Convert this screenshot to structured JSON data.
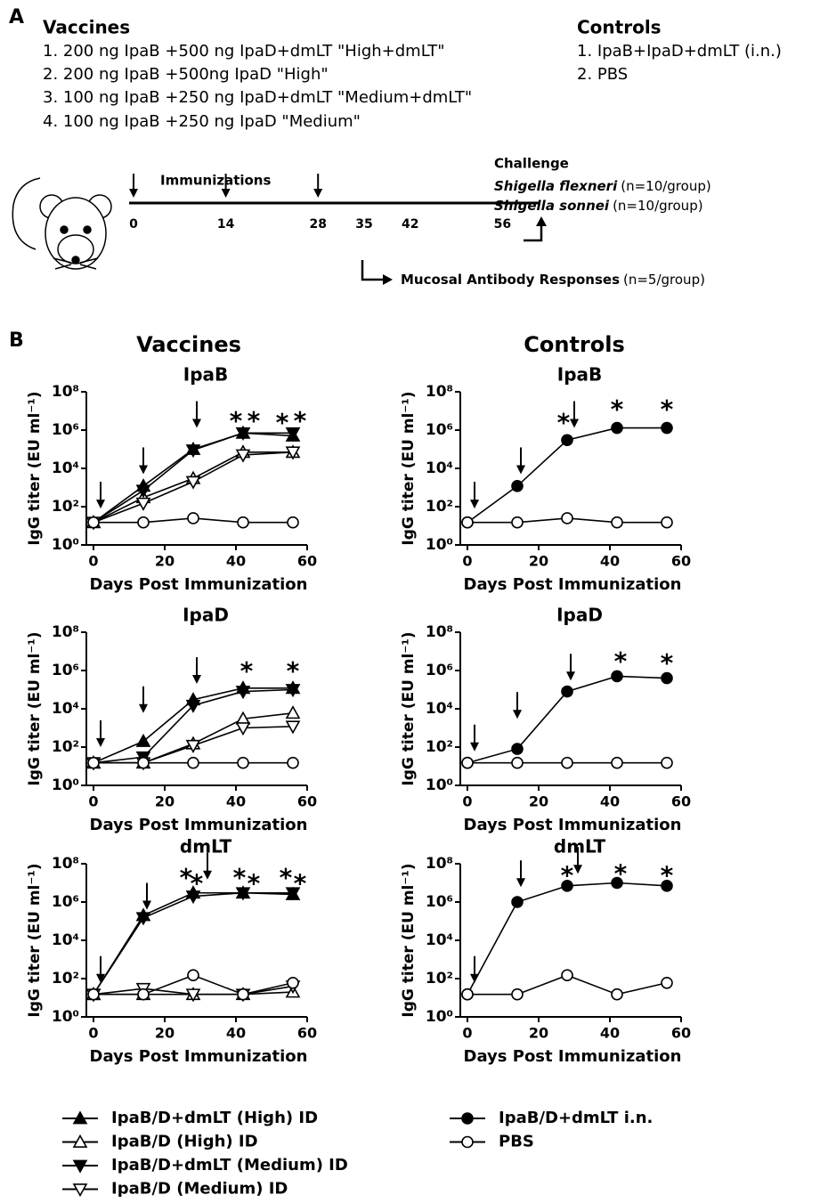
{
  "panel_a": {
    "label": "A",
    "vaccines_title": "Vaccines",
    "vaccines": [
      "1. 200 ng IpaB +500 ng IpaD+dmLT \"High+dmLT\"",
      "2. 200 ng IpaB +500ng IpaD \"High\"",
      "3. 100 ng IpaB +250 ng IpaD+dmLT \"Medium+dmLT\"",
      "4. 100 ng IpaB +250 ng IpaD \"Medium\""
    ],
    "controls_title": "Controls",
    "controls": [
      "1. IpaB+IpaD+dmLT  (i.n.)",
      "2. PBS"
    ],
    "immunizations_label": "Immunizations",
    "timeline_days": [
      0,
      14,
      28,
      35,
      42,
      56
    ],
    "challenge_label": "Challenge",
    "challenge_strains": [
      {
        "name": "Shigella flexneri",
        "n": "(n=10/group)"
      },
      {
        "name": "Shigella sonnei",
        "n": "(n=10/group)"
      }
    ],
    "mucosal_label": "Mucosal Antibody Responses",
    "mucosal_n": "(n=5/group)"
  },
  "panel_b": {
    "label": "B",
    "columns": [
      "Vaccines",
      "Controls"
    ]
  },
  "chart_data": [
    {
      "type": "line",
      "title": "IpaB",
      "y_label": "IgG titer (EU ml⁻¹)",
      "x_label": "Days Post Immunization",
      "log_y": true,
      "xlim": [
        -2,
        60
      ],
      "xticks": [
        0,
        20,
        40,
        60
      ],
      "ylim": [
        1,
        100000000
      ],
      "yticks": [
        {
          "value": 1,
          "label": "10⁰"
        },
        {
          "value": 100,
          "label": "10²"
        },
        {
          "value": 10000,
          "label": "10⁴"
        },
        {
          "value": 1000000,
          "label": "10⁶"
        },
        {
          "value": 100000000,
          "label": "10⁸"
        }
      ],
      "series": [
        {
          "marker": "triangle-up",
          "filled": true,
          "color": "#000000",
          "x": [
            0,
            14,
            28,
            42,
            56
          ],
          "values": [
            15,
            1200,
            100000,
            700000,
            500000
          ]
        },
        {
          "marker": "triangle-up",
          "filled": false,
          "color": "#000000",
          "x": [
            0,
            14,
            28,
            42,
            56
          ],
          "values": [
            15,
            300,
            3000,
            70000,
            70000
          ]
        },
        {
          "marker": "triangle-down",
          "filled": true,
          "color": "#000000",
          "x": [
            0,
            14,
            28,
            42,
            56
          ],
          "values": [
            15,
            700,
            90000,
            700000,
            700000
          ]
        },
        {
          "marker": "triangle-down",
          "filled": false,
          "color": "#000000",
          "x": [
            0,
            14,
            28,
            42,
            56
          ],
          "values": [
            15,
            150,
            2000,
            50000,
            70000
          ]
        },
        {
          "marker": "circle",
          "filled": false,
          "color": "#000000",
          "x": [
            0,
            14,
            28,
            42,
            56
          ],
          "values": [
            15,
            15,
            25,
            15,
            15
          ]
        }
      ],
      "arrows": [
        {
          "x": 2,
          "y": 80
        },
        {
          "x": 14,
          "y": 5000
        },
        {
          "x": 29,
          "y": 1300000
        }
      ],
      "annotations": [
        {
          "text": "*",
          "x": 40,
          "y": 5000000
        },
        {
          "text": "*",
          "x": 45,
          "y": 5000000
        },
        {
          "text": "*",
          "x": 53,
          "y": 4000000
        },
        {
          "text": "*",
          "x": 58,
          "y": 5000000
        }
      ]
    },
    {
      "type": "line",
      "title": "IpaB",
      "y_label": "IgG titer (EU ml⁻¹)",
      "x_label": "Days Post Immunization",
      "log_y": true,
      "xlim": [
        -2,
        60
      ],
      "xticks": [
        0,
        20,
        40,
        60
      ],
      "ylim": [
        1,
        100000000
      ],
      "yticks": [
        {
          "value": 1,
          "label": "10⁰"
        },
        {
          "value": 100,
          "label": "10²"
        },
        {
          "value": 10000,
          "label": "10⁴"
        },
        {
          "value": 1000000,
          "label": "10⁶"
        },
        {
          "value": 100000000,
          "label": "10⁸"
        }
      ],
      "series": [
        {
          "marker": "circle",
          "filled": true,
          "color": "#000000",
          "x": [
            0,
            14,
            28,
            42,
            56
          ],
          "values": [
            15,
            1200,
            300000,
            1300000,
            1300000
          ]
        },
        {
          "marker": "circle",
          "filled": false,
          "color": "#000000",
          "x": [
            0,
            14,
            28,
            42,
            56
          ],
          "values": [
            15,
            15,
            25,
            15,
            15
          ]
        }
      ],
      "arrows": [
        {
          "x": 2,
          "y": 80
        },
        {
          "x": 15,
          "y": 5000
        },
        {
          "x": 30,
          "y": 1300000
        }
      ],
      "annotations": [
        {
          "text": "*",
          "x": 27,
          "y": 4000000
        },
        {
          "text": "*",
          "x": 42,
          "y": 20000000
        },
        {
          "text": "*",
          "x": 56,
          "y": 20000000
        }
      ]
    },
    {
      "type": "line",
      "title": "IpaD",
      "y_label": "IgG titer (EU ml⁻¹)",
      "x_label": "Days Post Immunization",
      "log_y": true,
      "xlim": [
        -2,
        60
      ],
      "xticks": [
        0,
        20,
        40,
        60
      ],
      "ylim": [
        1,
        100000000
      ],
      "yticks": [
        {
          "value": 1,
          "label": "10⁰"
        },
        {
          "value": 100,
          "label": "10²"
        },
        {
          "value": 10000,
          "label": "10⁴"
        },
        {
          "value": 1000000,
          "label": "10⁶"
        },
        {
          "value": 100000000,
          "label": "10⁸"
        }
      ],
      "series": [
        {
          "marker": "triangle-up",
          "filled": true,
          "color": "#000000",
          "x": [
            0,
            14,
            28,
            42,
            56
          ],
          "values": [
            15,
            200,
            30000,
            120000,
            120000
          ]
        },
        {
          "marker": "triangle-up",
          "filled": false,
          "color": "#000000",
          "x": [
            0,
            14,
            28,
            42,
            56
          ],
          "values": [
            15,
            15,
            150,
            3000,
            6000
          ]
        },
        {
          "marker": "triangle-down",
          "filled": true,
          "color": "#000000",
          "x": [
            0,
            14,
            28,
            42,
            56
          ],
          "values": [
            15,
            30,
            15000,
            80000,
            100000
          ]
        },
        {
          "marker": "triangle-down",
          "filled": false,
          "color": "#000000",
          "x": [
            0,
            14,
            28,
            42,
            56
          ],
          "values": [
            15,
            15,
            120,
            1000,
            1200
          ]
        },
        {
          "marker": "circle",
          "filled": false,
          "color": "#000000",
          "x": [
            0,
            14,
            28,
            42,
            56
          ],
          "values": [
            15,
            15,
            15,
            15,
            15
          ]
        }
      ],
      "arrows": [
        {
          "x": 2,
          "y": 100
        },
        {
          "x": 14,
          "y": 6000
        },
        {
          "x": 29,
          "y": 200000
        }
      ],
      "annotations": [
        {
          "text": "*",
          "x": 43,
          "y": 1500000
        },
        {
          "text": "*",
          "x": 56,
          "y": 1500000
        }
      ]
    },
    {
      "type": "line",
      "title": "IpaD",
      "y_label": "IgG titer (EU ml⁻¹)",
      "x_label": "Days Post Immunization",
      "log_y": true,
      "xlim": [
        -2,
        60
      ],
      "xticks": [
        0,
        20,
        40,
        60
      ],
      "ylim": [
        1,
        100000000
      ],
      "yticks": [
        {
          "value": 1,
          "label": "10⁰"
        },
        {
          "value": 100,
          "label": "10²"
        },
        {
          "value": 10000,
          "label": "10⁴"
        },
        {
          "value": 1000000,
          "label": "10⁶"
        },
        {
          "value": 100000000,
          "label": "10⁸"
        }
      ],
      "series": [
        {
          "marker": "circle",
          "filled": true,
          "color": "#000000",
          "x": [
            0,
            14,
            28,
            42,
            56
          ],
          "values": [
            15,
            80,
            80000,
            500000,
            400000
          ]
        },
        {
          "marker": "circle",
          "filled": false,
          "color": "#000000",
          "x": [
            0,
            14,
            28,
            42,
            56
          ],
          "values": [
            15,
            15,
            15,
            15,
            15
          ]
        }
      ],
      "arrows": [
        {
          "x": 2,
          "y": 60
        },
        {
          "x": 14,
          "y": 3000
        },
        {
          "x": 29,
          "y": 300000
        }
      ],
      "annotations": [
        {
          "text": "*",
          "x": 43,
          "y": 5000000
        },
        {
          "text": "*",
          "x": 56,
          "y": 4000000
        }
      ]
    },
    {
      "type": "line",
      "title": "dmLT",
      "y_label": "IgG titer (EU ml⁻¹)",
      "x_label": "Days Post Immunization",
      "log_y": true,
      "xlim": [
        -2,
        60
      ],
      "xticks": [
        0,
        20,
        40,
        60
      ],
      "ylim": [
        1,
        100000000
      ],
      "yticks": [
        {
          "value": 1,
          "label": "10⁰"
        },
        {
          "value": 100,
          "label": "10²"
        },
        {
          "value": 10000,
          "label": "10⁴"
        },
        {
          "value": 1000000,
          "label": "10⁶"
        },
        {
          "value": 100000000,
          "label": "10⁸"
        }
      ],
      "legend": true,
      "series": [
        {
          "name": "IpaB/D+dmLT (High) ID",
          "marker": "triangle-up",
          "filled": true,
          "color": "#000000",
          "x": [
            0,
            14,
            28,
            42,
            56
          ],
          "values": [
            15,
            200000,
            3000000,
            3000000,
            2500000
          ]
        },
        {
          "name": "IpaB/D (High) ID",
          "marker": "triangle-up",
          "filled": false,
          "color": "#000000",
          "x": [
            0,
            14,
            28,
            42,
            56
          ],
          "values": [
            15,
            15,
            15,
            15,
            20
          ]
        },
        {
          "name": "IpaB/D+dmLT (Medium) ID",
          "marker": "triangle-down",
          "filled": true,
          "color": "#000000",
          "x": [
            0,
            14,
            28,
            42,
            56
          ],
          "values": [
            15,
            150000,
            2000000,
            3000000,
            3000000
          ]
        },
        {
          "name": "IpaB/D (Medium) ID",
          "marker": "triangle-down",
          "filled": false,
          "color": "#000000",
          "x": [
            0,
            14,
            28,
            42,
            56
          ],
          "values": [
            15,
            30,
            15,
            15,
            40
          ]
        },
        {
          "marker": "circle",
          "filled": false,
          "color": "#000000",
          "x": [
            0,
            14,
            28,
            42,
            56
          ],
          "values": [
            15,
            15,
            150,
            15,
            60
          ]
        }
      ],
      "arrows": [
        {
          "x": 2,
          "y": 60
        },
        {
          "x": 15,
          "y": 400000
        },
        {
          "x": 32,
          "y": 15000000
        }
      ],
      "annotations": [
        {
          "text": "*",
          "x": 26,
          "y": 30000000
        },
        {
          "text": "*",
          "x": 29,
          "y": 15000000
        },
        {
          "text": "*",
          "x": 41,
          "y": 30000000
        },
        {
          "text": "*",
          "x": 45,
          "y": 15000000
        },
        {
          "text": "*",
          "x": 54,
          "y": 30000000
        },
        {
          "text": "*",
          "x": 58,
          "y": 15000000
        }
      ]
    },
    {
      "type": "line",
      "title": "dmLT",
      "y_label": "IgG titer (EU ml⁻¹)",
      "x_label": "Days Post Immunization",
      "log_y": true,
      "xlim": [
        -2,
        60
      ],
      "xticks": [
        0,
        20,
        40,
        60
      ],
      "ylim": [
        1,
        100000000
      ],
      "yticks": [
        {
          "value": 1,
          "label": "10⁰"
        },
        {
          "value": 100,
          "label": "10²"
        },
        {
          "value": 10000,
          "label": "10⁴"
        },
        {
          "value": 1000000,
          "label": "10⁶"
        },
        {
          "value": 100000000,
          "label": "10⁸"
        }
      ],
      "legend": true,
      "series": [
        {
          "name": "IpaB/D+dmLT i.n.",
          "marker": "circle",
          "filled": true,
          "color": "#000000",
          "x": [
            0,
            14,
            28,
            42,
            56
          ],
          "values": [
            15,
            1000000,
            7000000,
            10000000,
            7000000
          ]
        },
        {
          "name": "PBS",
          "marker": "circle",
          "filled": false,
          "color": "#000000",
          "x": [
            0,
            14,
            28,
            42,
            56
          ],
          "values": [
            15,
            15,
            150,
            15,
            60
          ]
        }
      ],
      "arrows": [
        {
          "x": 2,
          "y": 60
        },
        {
          "x": 15,
          "y": 6000000
        },
        {
          "x": 31,
          "y": 30000000
        }
      ],
      "annotations": [
        {
          "text": "*",
          "x": 28,
          "y": 40000000
        },
        {
          "text": "*",
          "x": 43,
          "y": 50000000
        },
        {
          "text": "*",
          "x": 56,
          "y": 40000000
        }
      ]
    }
  ]
}
